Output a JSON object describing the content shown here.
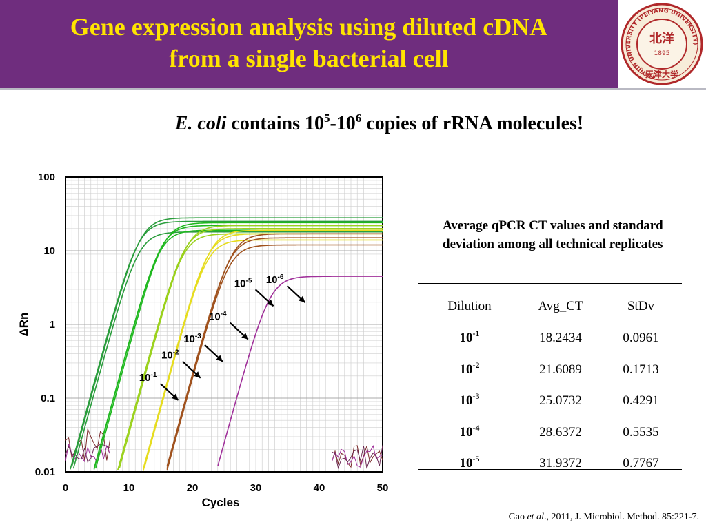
{
  "slide": {
    "title_line1": "Gene expression analysis using diluted cDNA",
    "title_line2": "from a single bacterial cell",
    "subtitle": {
      "species": "E. coli",
      "text_a": " contains 10",
      "exp_a": "5",
      "text_b": "-10",
      "exp_b": "6",
      "text_c": " copies of rRNA molecules!"
    },
    "citation": {
      "prefix": "Gao ",
      "etal": "et al",
      "suffix": "., 2011, J. Microbiol. Method. 85:221-7."
    },
    "logo": {
      "ring_text": "TIANJIN UNIVERSITY (PEIYANG UNIVERSITY)",
      "year": "1895",
      "center_text": "北洋",
      "bottom_text": "天津大学"
    }
  },
  "table": {
    "caption": "Average qPCR CT values and standard deviation among all technical replicates",
    "headers": [
      "Dilution",
      "Avg_CT",
      "StDv"
    ],
    "rows": [
      {
        "base": "10",
        "exp": "-1",
        "avg": "18.2434",
        "sd": "0.0961"
      },
      {
        "base": "10",
        "exp": "-2",
        "avg": "21.6089",
        "sd": "0.1713"
      },
      {
        "base": "10",
        "exp": "-3",
        "avg": "25.0732",
        "sd": "0.4291"
      },
      {
        "base": "10",
        "exp": "-4",
        "avg": "28.6372",
        "sd": "0.5535"
      },
      {
        "base": "10",
        "exp": "-5",
        "avg": "31.9372",
        "sd": "0.7767"
      }
    ]
  },
  "chart_data": {
    "type": "line",
    "xlabel": "Cycles",
    "ylabel": "ΔRn",
    "xlim": [
      0,
      50
    ],
    "ylim": [
      0.01,
      100
    ],
    "y_scale": "log",
    "x_ticks": [
      "0",
      "10",
      "20",
      "30",
      "40",
      "50"
    ],
    "y_ticks": [
      "100",
      "10",
      "1",
      "0.1",
      "0.01"
    ],
    "grid": true,
    "series": [
      {
        "name": "10-1",
        "color": "#2a9d3c",
        "ct": 18.2,
        "plateau": [
          18,
          25,
          28
        ]
      },
      {
        "name": "10-2",
        "color": "#1eb81e",
        "ct": 21.6,
        "plateau": [
          19,
          22,
          24
        ]
      },
      {
        "name": "10-3",
        "color": "#9ad11c",
        "ct": 25.1,
        "plateau": [
          17,
          20,
          22
        ]
      },
      {
        "name": "10-4",
        "color": "#e6dc1e",
        "ct": 28.6,
        "plateau": [
          14,
          17,
          19
        ]
      },
      {
        "name": "10-5",
        "color": "#a0521e",
        "ct": 31.9,
        "plateau": [
          12,
          15,
          17
        ]
      },
      {
        "name": "10-6",
        "color": "#a0309a",
        "ct": 36.5,
        "plateau": [
          4.5
        ]
      }
    ],
    "annotations": [
      {
        "base": "10",
        "exp": "-1",
        "cycle": 18.0,
        "value": 0.09
      },
      {
        "base": "10",
        "exp": "-2",
        "cycle": 21.5,
        "value": 0.18
      },
      {
        "base": "10",
        "exp": "-3",
        "cycle": 25.0,
        "value": 0.3
      },
      {
        "base": "10",
        "exp": "-4",
        "cycle": 29.0,
        "value": 0.6
      },
      {
        "base": "10",
        "exp": "-5",
        "cycle": 33.0,
        "value": 1.7
      },
      {
        "base": "10",
        "exp": "-6",
        "cycle": 38.0,
        "value": 1.9
      }
    ]
  }
}
